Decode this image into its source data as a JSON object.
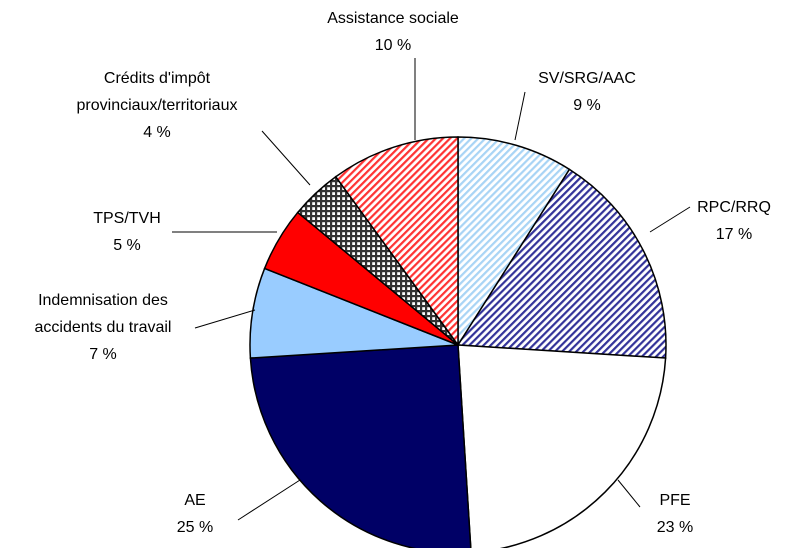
{
  "chart_data": {
    "type": "pie",
    "categories": [
      "SV/SRG/AAC",
      "RPC/RRQ",
      "PFE",
      "AE",
      "Indemnisation des\naccidents du travail",
      "TPS/TVH",
      "Crédits d'impôt\nprovinciaux/territoriaux",
      "Assistance sociale"
    ],
    "values": [
      9,
      17,
      23,
      25,
      7,
      5,
      4,
      10
    ],
    "value_labels": [
      "9 %",
      "17 %",
      "23 %",
      "25 %",
      "7 %",
      "5 %",
      "4 %",
      "10 %"
    ],
    "colors": [
      "#a8d4f5",
      "#333399",
      "#ffffff",
      "#000066",
      "#99ccff",
      "#ff0000",
      "#333333",
      "#ff3333"
    ],
    "hatched": [
      true,
      true,
      false,
      false,
      false,
      false,
      true,
      true
    ]
  }
}
